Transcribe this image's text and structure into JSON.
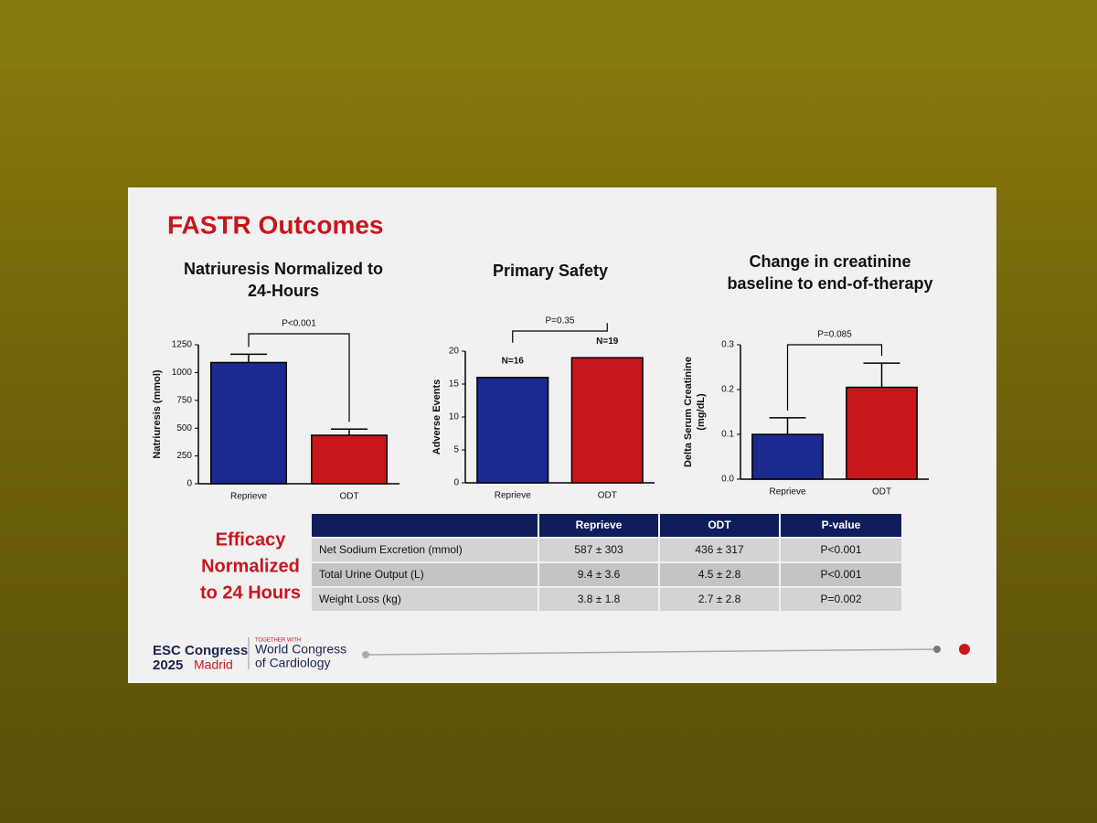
{
  "slide_title": "FASTR Outcomes",
  "chart_data": [
    {
      "type": "bar",
      "title": [
        "Natriuresis Normalized to",
        "24-Hours"
      ],
      "y_label": [
        "Natriuresis (mmol)"
      ],
      "categories": [
        "Reprieve",
        "ODT"
      ],
      "values": [
        1090,
        436
      ],
      "errors": [
        75,
        55
      ],
      "colors": [
        "#1b2a8e",
        "#c8161d"
      ],
      "ylim": [
        0,
        1250
      ],
      "yticks": [
        0,
        250,
        500,
        750,
        1000,
        1250
      ],
      "annotation": "P<0.001"
    },
    {
      "type": "bar",
      "title": [
        "Primary Safety"
      ],
      "y_label": [
        "Adverse Events"
      ],
      "categories": [
        "Reprieve",
        "ODT"
      ],
      "values": [
        16,
        19
      ],
      "value_labels": [
        "N=16",
        "N=19"
      ],
      "colors": [
        "#1b2a8e",
        "#c8161d"
      ],
      "ylim": [
        0,
        20
      ],
      "yticks": [
        0,
        5,
        10,
        15,
        20
      ],
      "annotation": "P=0.35"
    },
    {
      "type": "bar",
      "title": [
        "Change in creatinine",
        "baseline to end-of-therapy"
      ],
      "y_label": [
        "Delta Serum Creatinine",
        "(mg/dL)"
      ],
      "categories": [
        "Reprieve",
        "ODT"
      ],
      "values": [
        0.1,
        0.205
      ],
      "errors": [
        0.037,
        0.054
      ],
      "colors": [
        "#1b2a8e",
        "#c8161d"
      ],
      "ylim": [
        0,
        0.3
      ],
      "yticks": [
        {
          "value": 0,
          "label": "0.0"
        },
        0.1,
        0.2,
        0.3
      ],
      "annotation": "P=0.085"
    }
  ],
  "side_label": [
    "Efficacy",
    "Normalized",
    "to 24 Hours"
  ],
  "table": {
    "header": [
      "Reprieve",
      "ODT",
      "P-value"
    ],
    "rows": [
      [
        "Net Sodium Excretion (mmol)",
        "587 ± 303",
        "436 ± 317",
        "P<0.001"
      ],
      [
        "Total Urine Output (L)",
        "9.4 ± 3.6",
        "4.5 ± 2.8",
        "P<0.001"
      ],
      [
        "Weight Loss (kg)",
        "3.8 ± 1.8",
        "2.7 ± 2.8",
        "P=0.002"
      ]
    ]
  },
  "footer": {
    "congress": "ESC Congress",
    "year": "2025",
    "city": "Madrid",
    "together": "TOGETHER WITH",
    "partner": [
      "World Congress",
      "of Cardiology"
    ]
  }
}
